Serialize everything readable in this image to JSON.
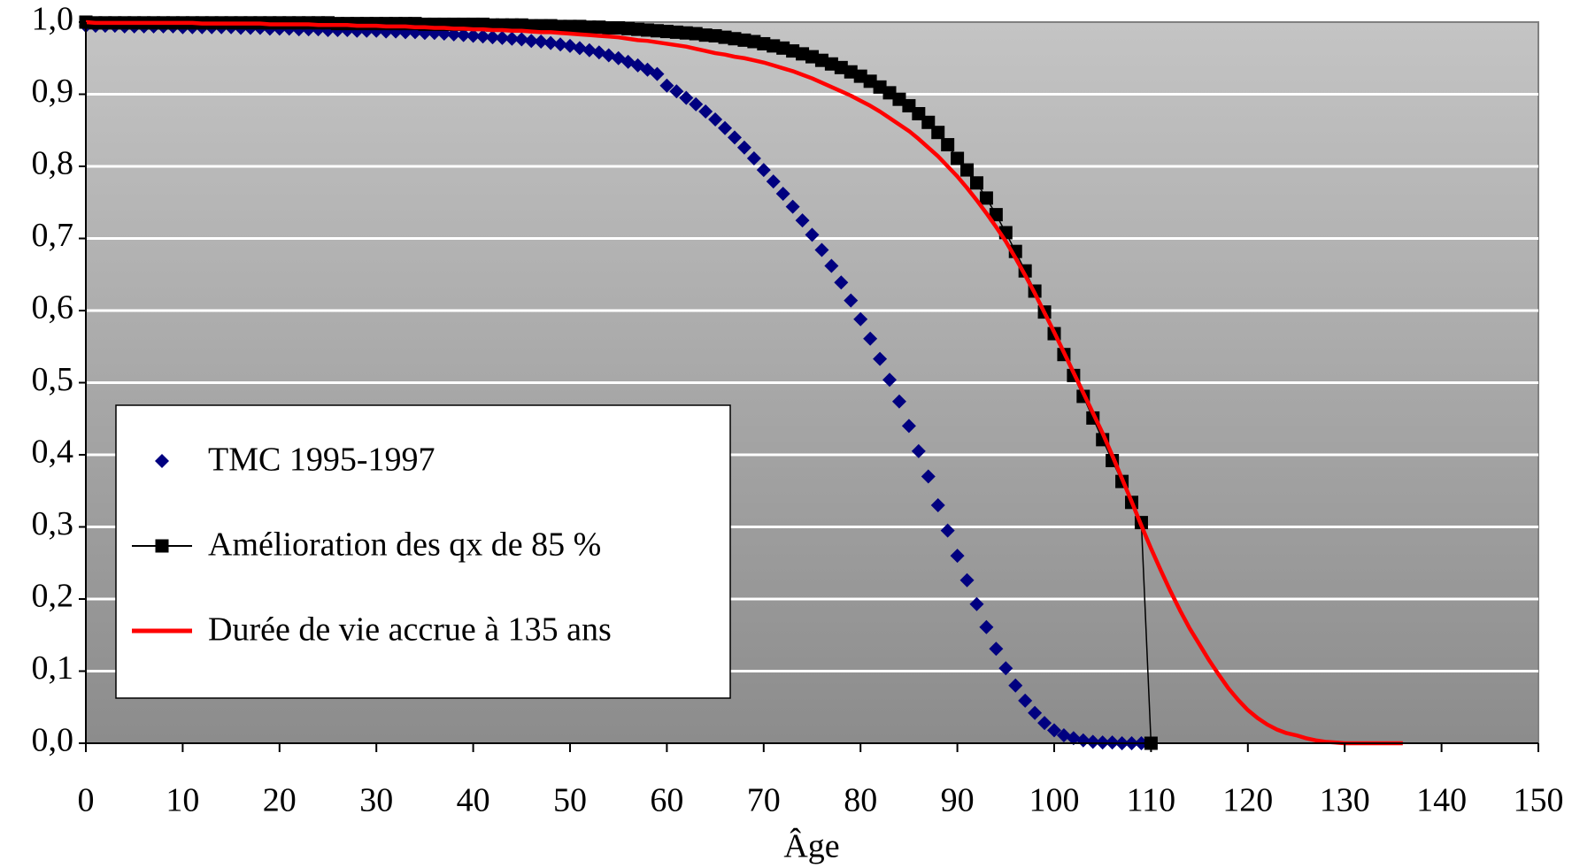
{
  "chart_data": {
    "type": "line",
    "xlabel": "Âge",
    "x": [
      0,
      1,
      2,
      3,
      4,
      5,
      6,
      7,
      8,
      9,
      10,
      11,
      12,
      13,
      14,
      15,
      16,
      17,
      18,
      19,
      20,
      21,
      22,
      23,
      24,
      25,
      26,
      27,
      28,
      29,
      30,
      31,
      32,
      33,
      34,
      35,
      36,
      37,
      38,
      39,
      40,
      41,
      42,
      43,
      44,
      45,
      46,
      47,
      48,
      49,
      50,
      51,
      52,
      53,
      54,
      55,
      56,
      57,
      58,
      59,
      60,
      61,
      62,
      63,
      64,
      65,
      66,
      67,
      68,
      69,
      70,
      71,
      72,
      73,
      74,
      75,
      76,
      77,
      78,
      79,
      80,
      81,
      82,
      83,
      84,
      85,
      86,
      87,
      88,
      89,
      90,
      91,
      92,
      93,
      94,
      95,
      96,
      97,
      98,
      99,
      100,
      101,
      102,
      103,
      104,
      105,
      106,
      107,
      108,
      109,
      110,
      111,
      112,
      113,
      114,
      115,
      116,
      117,
      118,
      119,
      120,
      121,
      122,
      123,
      124,
      125,
      126,
      127,
      128,
      129,
      130,
      131,
      132,
      133,
      134,
      135,
      136
    ],
    "series": [
      {
        "name": "TMC 1995-1997",
        "color": "#000080",
        "marker": "diamond",
        "line": false,
        "values": [
          0.995,
          0.995,
          0.995,
          0.995,
          0.994,
          0.994,
          0.994,
          0.994,
          0.994,
          0.994,
          0.993,
          0.993,
          0.993,
          0.993,
          0.993,
          0.993,
          0.992,
          0.992,
          0.992,
          0.991,
          0.991,
          0.991,
          0.99,
          0.99,
          0.99,
          0.989,
          0.989,
          0.989,
          0.988,
          0.988,
          0.988,
          0.987,
          0.987,
          0.986,
          0.986,
          0.985,
          0.985,
          0.984,
          0.983,
          0.982,
          0.981,
          0.98,
          0.979,
          0.978,
          0.977,
          0.976,
          0.974,
          0.973,
          0.971,
          0.969,
          0.967,
          0.964,
          0.961,
          0.958,
          0.954,
          0.95,
          0.945,
          0.94,
          0.934,
          0.928,
          0.912,
          0.904,
          0.895,
          0.886,
          0.876,
          0.865,
          0.853,
          0.84,
          0.826,
          0.811,
          0.795,
          0.779,
          0.762,
          0.744,
          0.725,
          0.705,
          0.684,
          0.662,
          0.639,
          0.614,
          0.588,
          0.561,
          0.533,
          0.504,
          0.474,
          0.44,
          0.405,
          0.37,
          0.33,
          0.295,
          0.26,
          0.226,
          0.193,
          0.161,
          0.131,
          0.104,
          0.08,
          0.059,
          0.042,
          0.028,
          0.018,
          0.011,
          0.007,
          0.004,
          0.002,
          0.001,
          0.001,
          0.0,
          0.0,
          0.0,
          null,
          null,
          null,
          null,
          null,
          null,
          null,
          null,
          null,
          null,
          null,
          null,
          null,
          null,
          null,
          null,
          null,
          null,
          null,
          null,
          null,
          null,
          null,
          null,
          null,
          null,
          null
        ]
      },
      {
        "name": "Amélioration des qx de 85 %",
        "color": "#000000",
        "marker": "square",
        "line": true,
        "values": [
          1.0,
          0.999,
          0.999,
          0.999,
          0.999,
          0.999,
          0.999,
          0.999,
          0.999,
          0.999,
          0.999,
          0.999,
          0.999,
          0.999,
          0.999,
          0.999,
          0.999,
          0.999,
          0.999,
          0.999,
          0.999,
          0.999,
          0.999,
          0.999,
          0.999,
          0.999,
          0.998,
          0.998,
          0.998,
          0.998,
          0.998,
          0.998,
          0.998,
          0.998,
          0.998,
          0.997,
          0.997,
          0.997,
          0.997,
          0.997,
          0.997,
          0.997,
          0.996,
          0.996,
          0.996,
          0.996,
          0.995,
          0.995,
          0.995,
          0.994,
          0.994,
          0.994,
          0.993,
          0.993,
          0.992,
          0.992,
          0.991,
          0.99,
          0.989,
          0.988,
          0.987,
          0.986,
          0.985,
          0.984,
          0.982,
          0.981,
          0.979,
          0.977,
          0.975,
          0.973,
          0.97,
          0.967,
          0.964,
          0.96,
          0.956,
          0.952,
          0.947,
          0.942,
          0.937,
          0.931,
          0.925,
          0.918,
          0.91,
          0.902,
          0.893,
          0.884,
          0.873,
          0.861,
          0.847,
          0.83,
          0.811,
          0.795,
          0.777,
          0.756,
          0.733,
          0.708,
          0.682,
          0.655,
          0.627,
          0.598,
          0.568,
          0.539,
          0.51,
          0.481,
          0.451,
          0.421,
          0.392,
          0.363,
          0.334,
          0.306,
          0.0,
          null,
          null,
          null,
          null,
          null,
          null,
          null,
          null,
          null,
          null,
          null,
          null,
          null,
          null,
          null,
          null,
          null,
          null,
          null,
          null,
          null,
          null,
          null,
          null,
          null,
          null
        ]
      },
      {
        "name": "Durée de vie accrue à 135 ans",
        "color": "#ff0000",
        "marker": "none",
        "line": true,
        "values": [
          1.0,
          0.999,
          0.999,
          0.999,
          0.999,
          0.999,
          0.999,
          0.999,
          0.999,
          0.999,
          0.999,
          0.999,
          0.998,
          0.998,
          0.998,
          0.998,
          0.998,
          0.998,
          0.998,
          0.997,
          0.997,
          0.997,
          0.997,
          0.997,
          0.996,
          0.996,
          0.996,
          0.996,
          0.995,
          0.995,
          0.995,
          0.994,
          0.994,
          0.994,
          0.993,
          0.993,
          0.992,
          0.992,
          0.991,
          0.991,
          0.99,
          0.99,
          0.989,
          0.989,
          0.988,
          0.988,
          0.987,
          0.986,
          0.986,
          0.985,
          0.984,
          0.983,
          0.982,
          0.981,
          0.98,
          0.979,
          0.977,
          0.975,
          0.974,
          0.972,
          0.97,
          0.968,
          0.966,
          0.963,
          0.96,
          0.957,
          0.955,
          0.952,
          0.95,
          0.947,
          0.944,
          0.94,
          0.936,
          0.932,
          0.927,
          0.922,
          0.916,
          0.91,
          0.904,
          0.898,
          0.891,
          0.884,
          0.876,
          0.867,
          0.858,
          0.849,
          0.838,
          0.826,
          0.814,
          0.8,
          0.786,
          0.77,
          0.753,
          0.735,
          0.716,
          0.696,
          0.673,
          0.649,
          0.624,
          0.597,
          0.57,
          0.542,
          0.514,
          0.486,
          0.458,
          0.43,
          0.399,
          0.367,
          0.335,
          0.302,
          0.27,
          0.24,
          0.211,
          0.184,
          0.159,
          0.137,
          0.115,
          0.095,
          0.076,
          0.06,
          0.046,
          0.035,
          0.026,
          0.019,
          0.014,
          0.011,
          0.007,
          0.004,
          0.002,
          0.001,
          0.0,
          0.0,
          0.0,
          0.0,
          0.0,
          0.0,
          0.0
        ]
      }
    ],
    "xlim": [
      0,
      150
    ],
    "xticks": [
      0,
      10,
      20,
      30,
      40,
      50,
      60,
      70,
      80,
      90,
      100,
      110,
      120,
      130,
      140,
      150
    ],
    "ylim": [
      0,
      1
    ],
    "yticks": [
      {
        "value": 0,
        "label": "0,0"
      },
      {
        "value": 0.1,
        "label": "0,1"
      },
      {
        "value": 0.2,
        "label": "0,2"
      },
      {
        "value": 0.3,
        "label": "0,3"
      },
      {
        "value": 0.4,
        "label": "0,4"
      },
      {
        "value": 0.5,
        "label": "0,5"
      },
      {
        "value": 0.6,
        "label": "0,6"
      },
      {
        "value": 0.7,
        "label": "0,7"
      },
      {
        "value": 0.8,
        "label": "0,8"
      },
      {
        "value": 0.9,
        "label": "0,9"
      },
      {
        "value": 1,
        "label": "1,0"
      }
    ],
    "grid": true,
    "legend": "lower-left"
  }
}
